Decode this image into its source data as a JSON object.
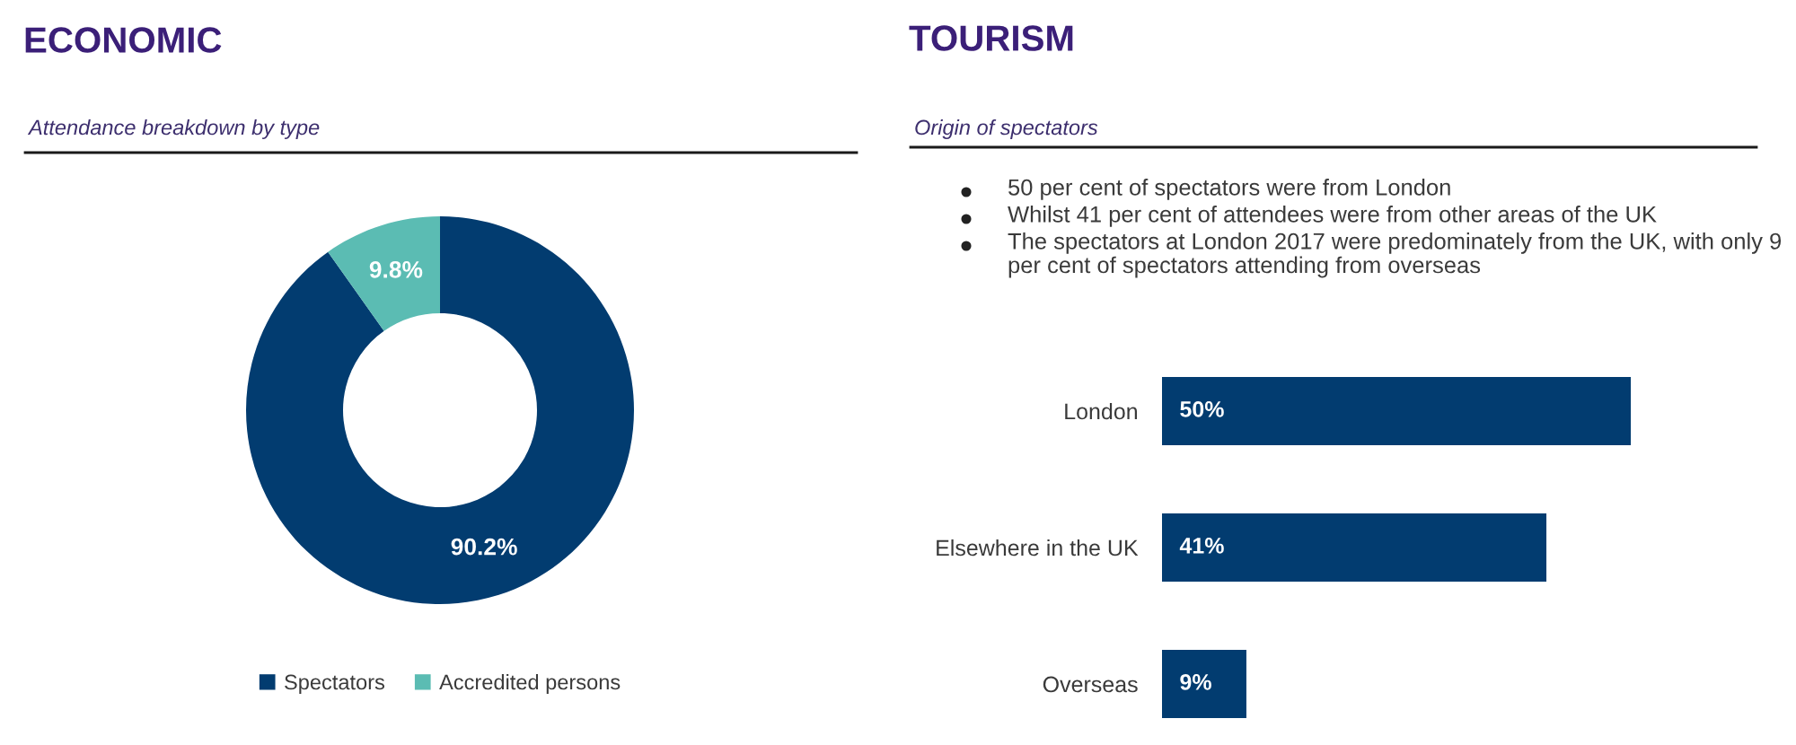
{
  "chart_data": [
    {
      "type": "donut",
      "title": "ECONOMIC",
      "subtitle": "Attendance breakdown by type",
      "categories": [
        "Spectators",
        "Accredited persons"
      ],
      "values": [
        90.2,
        9.8
      ],
      "colors": [
        "#023c70",
        "#5bbcb3"
      ],
      "value_labels": [
        "90.2%",
        "9.8%"
      ],
      "legend": "bottom"
    },
    {
      "type": "bar",
      "orientation": "horizontal",
      "title": "TOURISM",
      "subtitle": "Origin of spectators",
      "annotations": [
        "50 per cent of spectators were from London",
        "Whilst 41 per cent of attendees were from other areas of the UK",
        "The spectators at London 2017 were predominately from the UK, with only 9 per cent of spectators attending from overseas"
      ],
      "categories": [
        "London",
        "Elsewhere in the UK",
        "Overseas"
      ],
      "values": [
        50,
        41,
        9
      ],
      "color": "#023c70",
      "value_labels": [
        "50%",
        "41%",
        "9%"
      ]
    }
  ]
}
